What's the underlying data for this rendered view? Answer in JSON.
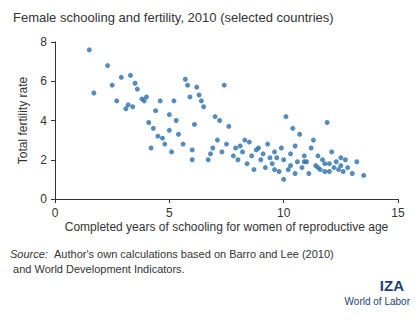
{
  "chart_data": {
    "type": "scatter",
    "title": "Female schooling and fertility, 2010 (selected countries)",
    "x_label": "Completed years of schooling for women of reproductive age",
    "y_label": "Total fertility rate",
    "source": {
      "prefix": "Source:",
      "text": "Author's own calculations based on Barro and Lee (2010) and World Development Indicators."
    },
    "annotations": [
      "IZA",
      "World of Labor"
    ],
    "color": "#2a6fae",
    "marker": "circle",
    "grid": false,
    "xlim": [
      0,
      15
    ],
    "xticks": [
      0,
      5,
      10,
      15
    ],
    "ylim": [
      0,
      8
    ],
    "yticks": [
      0,
      2,
      4,
      6,
      8
    ],
    "x": [
      1.5,
      1.7,
      2.3,
      2.5,
      2.7,
      2.9,
      3.1,
      3.2,
      3.3,
      3.4,
      3.5,
      3.6,
      3.8,
      3.9,
      4.0,
      4.1,
      4.2,
      4.3,
      4.4,
      4.5,
      4.6,
      4.7,
      4.8,
      5.0,
      5.0,
      5.1,
      5.2,
      5.3,
      5.4,
      5.6,
      5.7,
      5.8,
      5.9,
      6.0,
      6.0,
      6.1,
      6.2,
      6.3,
      6.4,
      6.5,
      6.7,
      6.8,
      6.9,
      7.0,
      7.1,
      7.2,
      7.3,
      7.4,
      7.5,
      7.6,
      7.8,
      7.9,
      8.0,
      8.1,
      8.2,
      8.3,
      8.4,
      8.5,
      8.6,
      8.7,
      8.8,
      8.9,
      9.0,
      9.1,
      9.2,
      9.3,
      9.4,
      9.5,
      9.6,
      9.7,
      9.8,
      9.9,
      10.0,
      10.0,
      10.1,
      10.2,
      10.3,
      10.4,
      10.5,
      10.5,
      10.6,
      10.7,
      10.8,
      10.9,
      11.0,
      11.1,
      11.2,
      11.3,
      11.4,
      11.5,
      11.6,
      11.7,
      11.8,
      11.9,
      12.0,
      12.1,
      12.2,
      12.3,
      12.4,
      12.5,
      12.6,
      12.7,
      12.8,
      13.0,
      13.2,
      13.5,
      11.5,
      12.0,
      12.5,
      10.9,
      11.8,
      9.6,
      10.3
    ],
    "values": [
      7.6,
      5.4,
      6.8,
      5.8,
      5.0,
      6.2,
      4.6,
      4.8,
      6.3,
      4.7,
      5.9,
      5.6,
      5.1,
      5.0,
      5.2,
      3.9,
      2.6,
      3.6,
      4.5,
      3.2,
      5.0,
      3.1,
      2.8,
      3.5,
      4.3,
      2.4,
      5.0,
      4.0,
      3.3,
      2.8,
      6.1,
      5.8,
      5.2,
      2.0,
      2.5,
      3.8,
      5.7,
      5.3,
      5.0,
      4.7,
      2.0,
      2.3,
      2.6,
      4.2,
      3.0,
      4.0,
      2.4,
      5.8,
      2.8,
      3.7,
      2.2,
      2.6,
      2.0,
      2.7,
      2.4,
      3.0,
      1.8,
      2.9,
      2.2,
      1.5,
      2.5,
      2.6,
      2.0,
      2.3,
      1.6,
      2.8,
      2.1,
      1.8,
      2.4,
      2.1,
      1.4,
      2.6,
      1.0,
      2.0,
      4.2,
      1.5,
      2.3,
      3.6,
      1.3,
      2.7,
      1.9,
      3.3,
      1.6,
      2.2,
      1.9,
      1.3,
      2.6,
      3.0,
      1.7,
      2.2,
      1.5,
      2.0,
      1.4,
      3.9,
      1.8,
      2.4,
      1.6,
      1.9,
      1.5,
      2.1,
      1.4,
      2.0,
      1.6,
      1.3,
      1.9,
      1.2,
      1.6,
      1.4,
      1.7,
      1.9,
      1.8,
      1.5,
      1.7
    ]
  }
}
